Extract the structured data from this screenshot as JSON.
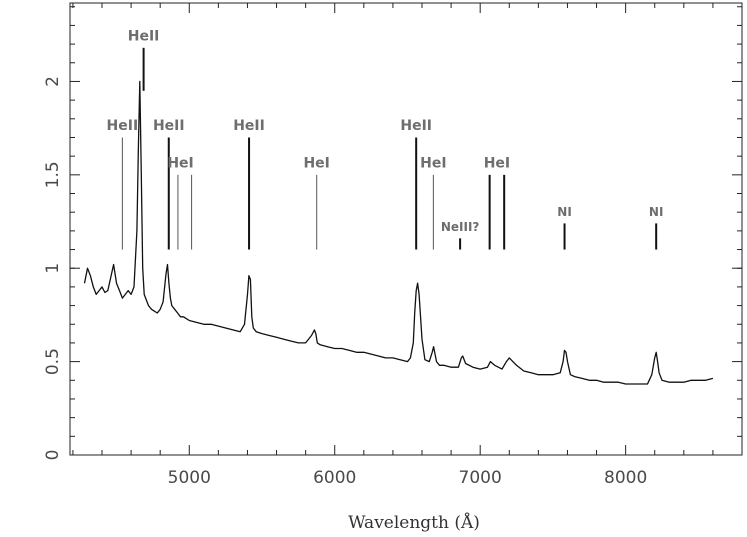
{
  "chart_data": {
    "type": "line",
    "title": "",
    "xlabel": "Wavelength (Å)",
    "ylabel": "",
    "xlim": [
      4180,
      8800
    ],
    "ylim": [
      0,
      2.42
    ],
    "x_ticks": [
      5000,
      6000,
      7000,
      8000
    ],
    "x_tick_labels": [
      "5000",
      "6000",
      "7000",
      "8000"
    ],
    "y_ticks": [
      0,
      0.5,
      1,
      1.5,
      2
    ],
    "y_tick_labels": [
      "0",
      "0.5",
      "1",
      "1.5",
      "2"
    ],
    "grid": false,
    "legend": "none",
    "series": [
      {
        "color": "#111111",
        "x": [
          4280,
          4300,
          4320,
          4340,
          4360,
          4380,
          4400,
          4420,
          4440,
          4460,
          4480,
          4500,
          4520,
          4540,
          4560,
          4580,
          4600,
          4620,
          4640,
          4650,
          4660,
          4670,
          4680,
          4690,
          4700,
          4720,
          4740,
          4760,
          4780,
          4800,
          4820,
          4840,
          4850,
          4860,
          4870,
          4880,
          4900,
          4920,
          4940,
          4960,
          4980,
          5000,
          5050,
          5100,
          5150,
          5200,
          5250,
          5300,
          5350,
          5380,
          5400,
          5410,
          5420,
          5430,
          5440,
          5460,
          5500,
          5550,
          5600,
          5650,
          5700,
          5750,
          5800,
          5840,
          5860,
          5870,
          5880,
          5900,
          5950,
          6000,
          6050,
          6100,
          6150,
          6200,
          6250,
          6300,
          6350,
          6400,
          6450,
          6500,
          6520,
          6540,
          6550,
          6560,
          6570,
          6580,
          6600,
          6620,
          6650,
          6670,
          6680,
          6700,
          6720,
          6750,
          6800,
          6850,
          6870,
          6880,
          6900,
          6950,
          7000,
          7050,
          7070,
          7100,
          7150,
          7180,
          7200,
          7250,
          7300,
          7350,
          7400,
          7450,
          7500,
          7550,
          7570,
          7580,
          7590,
          7600,
          7620,
          7650,
          7700,
          7750,
          7800,
          7850,
          7900,
          7950,
          8000,
          8050,
          8100,
          8150,
          8180,
          8200,
          8210,
          8220,
          8230,
          8250,
          8300,
          8350,
          8400,
          8450,
          8500,
          8550,
          8600
        ],
        "y": [
          0.92,
          1.0,
          0.96,
          0.9,
          0.86,
          0.88,
          0.9,
          0.87,
          0.88,
          0.95,
          1.02,
          0.92,
          0.88,
          0.84,
          0.86,
          0.88,
          0.86,
          0.9,
          1.2,
          1.65,
          2.0,
          1.5,
          1.0,
          0.86,
          0.84,
          0.8,
          0.78,
          0.77,
          0.76,
          0.78,
          0.82,
          0.97,
          1.02,
          0.92,
          0.84,
          0.8,
          0.78,
          0.76,
          0.74,
          0.74,
          0.73,
          0.72,
          0.71,
          0.7,
          0.7,
          0.69,
          0.68,
          0.67,
          0.66,
          0.7,
          0.86,
          0.96,
          0.94,
          0.74,
          0.68,
          0.66,
          0.65,
          0.64,
          0.63,
          0.62,
          0.61,
          0.6,
          0.6,
          0.64,
          0.67,
          0.65,
          0.6,
          0.59,
          0.58,
          0.57,
          0.57,
          0.56,
          0.55,
          0.55,
          0.54,
          0.53,
          0.52,
          0.52,
          0.51,
          0.5,
          0.52,
          0.6,
          0.76,
          0.88,
          0.92,
          0.86,
          0.62,
          0.51,
          0.5,
          0.55,
          0.58,
          0.5,
          0.48,
          0.48,
          0.47,
          0.47,
          0.52,
          0.53,
          0.49,
          0.47,
          0.46,
          0.47,
          0.5,
          0.48,
          0.46,
          0.5,
          0.52,
          0.48,
          0.45,
          0.44,
          0.43,
          0.43,
          0.43,
          0.44,
          0.5,
          0.56,
          0.55,
          0.5,
          0.43,
          0.42,
          0.41,
          0.4,
          0.4,
          0.39,
          0.39,
          0.39,
          0.38,
          0.38,
          0.38,
          0.38,
          0.43,
          0.52,
          0.55,
          0.5,
          0.44,
          0.4,
          0.39,
          0.39,
          0.39,
          0.4,
          0.4,
          0.4,
          0.41
        ]
      }
    ],
    "line_markers": [
      {
        "label": "HeII",
        "x": 4540,
        "y_bottom": 1.1,
        "y_top": 1.7,
        "weight": "thin"
      },
      {
        "label": "HeII",
        "x": 4686,
        "y_bottom": 1.95,
        "y_top": 2.18,
        "weight": "heavy"
      },
      {
        "label": "HeII",
        "x": 4859,
        "y_bottom": 1.1,
        "y_top": 1.7,
        "weight": "heavy"
      },
      {
        "label": "HeI",
        "x": 4922,
        "y_bottom": 1.1,
        "y_top": 1.5,
        "weight": "thin"
      },
      {
        "label": "HeI",
        "x": 5016,
        "y_bottom": 1.1,
        "y_top": 1.5,
        "weight": "thin"
      },
      {
        "label": "HeII",
        "x": 5411,
        "y_bottom": 1.1,
        "y_top": 1.7,
        "weight": "heavy"
      },
      {
        "label": "HeI",
        "x": 5876,
        "y_bottom": 1.1,
        "y_top": 1.5,
        "weight": "thin"
      },
      {
        "label": "HeII",
        "x": 6560,
        "y_bottom": 1.1,
        "y_top": 1.7,
        "weight": "heavy"
      },
      {
        "label": "HeI",
        "x": 6678,
        "y_bottom": 1.1,
        "y_top": 1.5,
        "weight": "thin"
      },
      {
        "label": "NeIII?",
        "x": 6862,
        "y_bottom": 1.1,
        "y_top": 1.16,
        "weight": "heavy"
      },
      {
        "label": "HeI",
        "x": 7065,
        "y_bottom": 1.1,
        "y_top": 1.5,
        "weight": "heavy"
      },
      {
        "label": "HeI",
        "x": 7165,
        "y_bottom": 1.1,
        "y_top": 1.5,
        "weight": "heavy"
      },
      {
        "label": "NI",
        "x": 7580,
        "y_bottom": 1.1,
        "y_top": 1.24,
        "weight": "heavy"
      },
      {
        "label": "NI",
        "x": 8210,
        "y_bottom": 1.1,
        "y_top": 1.24,
        "weight": "heavy"
      }
    ],
    "line_labels": [
      {
        "text": "HeII",
        "x": 4540,
        "y": 1.74
      },
      {
        "text": "HeII",
        "x": 4686,
        "y": 2.22
      },
      {
        "text": "HeII",
        "x": 4859,
        "y": 1.74
      },
      {
        "text": "HeI",
        "x": 4940,
        "y": 1.54
      },
      {
        "text": "HeII",
        "x": 5411,
        "y": 1.74
      },
      {
        "text": "HeI",
        "x": 5876,
        "y": 1.54
      },
      {
        "text": "HeII",
        "x": 6560,
        "y": 1.74
      },
      {
        "text": "HeI",
        "x": 6678,
        "y": 1.54
      },
      {
        "text": "NeIII?",
        "x": 6862,
        "y": 1.2
      },
      {
        "text": "HeI",
        "x": 7115,
        "y": 1.54
      },
      {
        "text": "NI",
        "x": 7580,
        "y": 1.28
      },
      {
        "text": "NI",
        "x": 8210,
        "y": 1.28
      }
    ]
  }
}
